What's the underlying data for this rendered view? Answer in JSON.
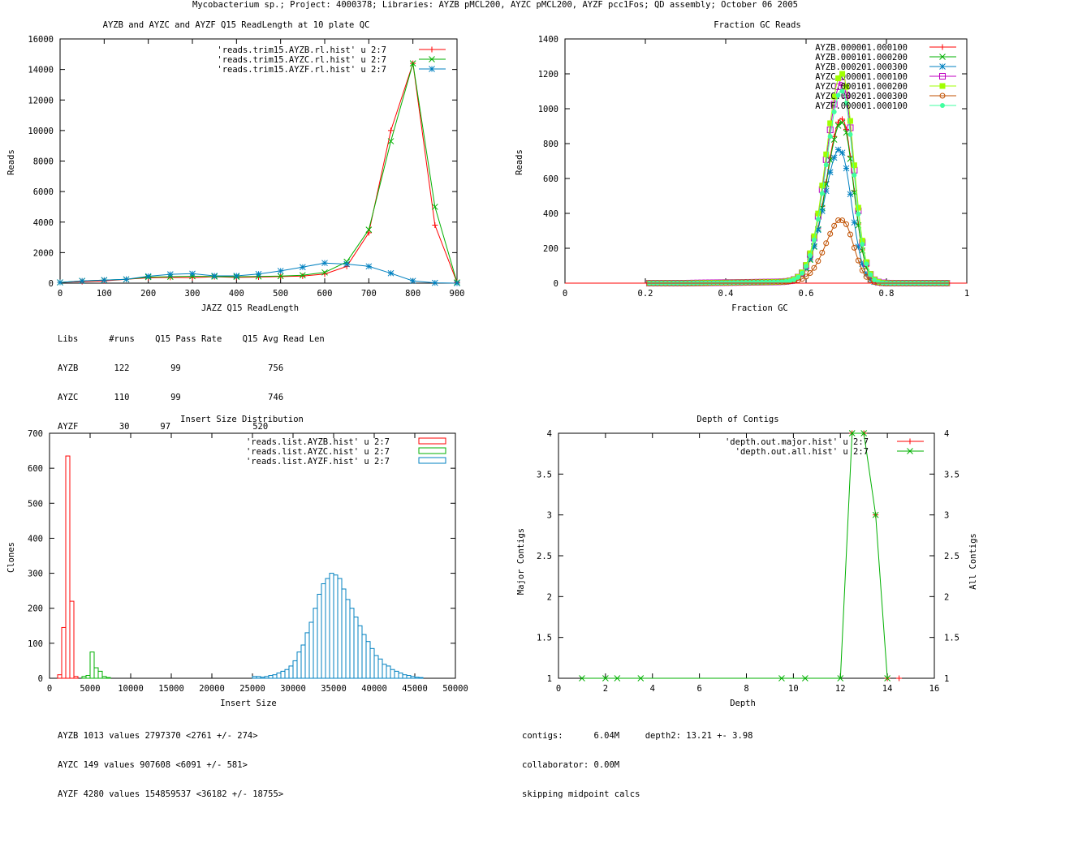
{
  "page_title": "Mycobacterium sp.; Project: 4000378; Libraries: AYZB pMCL200, AYZC pMCL200, AYZF pcc1Fos; QD assembly; October 06 2005",
  "chart_data": [
    {
      "id": "readlength",
      "type": "line",
      "title": "AYZB and AYZC and AYZF Q15 ReadLength at 10 plate QC",
      "xlabel": "JAZZ Q15 ReadLength",
      "ylabel": "Reads",
      "xlim": [
        0,
        900
      ],
      "ylim": [
        0,
        16000
      ],
      "xticks": [
        0,
        100,
        200,
        300,
        400,
        500,
        600,
        700,
        800,
        900
      ],
      "yticks": [
        0,
        2000,
        4000,
        6000,
        8000,
        10000,
        12000,
        14000,
        16000
      ],
      "legend_position": "top-right",
      "x": [
        0,
        50,
        100,
        150,
        200,
        250,
        300,
        350,
        400,
        450,
        500,
        550,
        600,
        650,
        700,
        750,
        800,
        850,
        900
      ],
      "series": [
        {
          "name": "'reads.trim15.AYZB.rl.hist' u 2:7",
          "color": "#ff0000",
          "marker": "plus",
          "values": [
            50,
            100,
            150,
            250,
            350,
            380,
            360,
            420,
            380,
            400,
            430,
            460,
            600,
            1100,
            3300,
            10000,
            14400,
            3800,
            50
          ]
        },
        {
          "name": "'reads.trim15.AYZC.rl.hist' u 2:7",
          "color": "#00b000",
          "marker": "cross",
          "values": [
            50,
            150,
            200,
            250,
            400,
            420,
            450,
            430,
            420,
            440,
            460,
            520,
            700,
            1400,
            3500,
            9300,
            14400,
            5000,
            50
          ]
        },
        {
          "name": "'reads.trim15.AYZF.rl.hist' u 2:7",
          "color": "#0080c0",
          "marker": "star",
          "values": [
            50,
            150,
            200,
            250,
            450,
            580,
            620,
            480,
            480,
            600,
            800,
            1050,
            1320,
            1250,
            1100,
            650,
            150,
            20,
            0
          ]
        }
      ],
      "stats": {
        "header": "Libs      #runs    Q15 Pass Rate    Q15 Avg Read Len",
        "rows": [
          "AYZB       122        99                 756",
          "AYZC       110        99                 746",
          "AYZF        30      97                520"
        ]
      }
    },
    {
      "id": "gc",
      "type": "line",
      "title": "Fraction GC Reads",
      "xlabel": "Fraction GC",
      "ylabel": "Reads",
      "xlim": [
        0,
        1
      ],
      "ylim": [
        0,
        1400
      ],
      "xticks": [
        0,
        0.2,
        0.4,
        0.6,
        0.8,
        1
      ],
      "yticks": [
        0,
        200,
        400,
        600,
        800,
        1000,
        1200,
        1400
      ],
      "legend_position": "top-right",
      "series": [
        {
          "name": "AYZB.000001.000100",
          "color": "#ff0000",
          "marker": "plus",
          "peak": 940,
          "center": 0.69
        },
        {
          "name": "AYZB.000101.000200",
          "color": "#00b000",
          "marker": "cross",
          "peak": 920,
          "center": 0.69
        },
        {
          "name": "AYZB.000201.000300",
          "color": "#0080c0",
          "marker": "star",
          "peak": 760,
          "center": 0.685
        },
        {
          "name": "AYZC.000001.000100",
          "color": "#c000c0",
          "marker": "box",
          "peak": 1150,
          "center": 0.69
        },
        {
          "name": "AYZC.000101.000200",
          "color": "#a0ff00",
          "marker": "filled-box",
          "peak": 1200,
          "center": 0.69
        },
        {
          "name": "AYZC.000201.000300",
          "color": "#c05000",
          "marker": "circle",
          "peak": 360,
          "center": 0.69
        },
        {
          "name": "AYZF.000001.000100",
          "color": "#40ffa0",
          "marker": "filled-circle",
          "peak": 1100,
          "center": 0.69
        }
      ]
    },
    {
      "id": "insert",
      "type": "bar",
      "title": "Insert Size Distribution",
      "xlabel": "Insert Size",
      "ylabel": "Clones",
      "xlim": [
        0,
        50000
      ],
      "ylim": [
        0,
        700
      ],
      "xticks": [
        0,
        5000,
        10000,
        15000,
        20000,
        25000,
        30000,
        35000,
        40000,
        45000,
        50000
      ],
      "yticks": [
        0,
        100,
        200,
        300,
        400,
        500,
        600,
        700
      ],
      "legend_position": "top-right",
      "series": [
        {
          "name": "'reads.list.AYZB.hist' u 2:7",
          "color": "#ff0000",
          "bin_width": 500,
          "x": [
            1000,
            1500,
            2000,
            2500,
            3000
          ],
          "values": [
            10,
            145,
            635,
            220,
            5
          ]
        },
        {
          "name": "'reads.list.AYZC.hist' u 2:7",
          "color": "#00b000",
          "bin_width": 500,
          "x": [
            4000,
            4500,
            5000,
            5500,
            6000,
            6500,
            7000
          ],
          "values": [
            5,
            8,
            75,
            30,
            20,
            5,
            2
          ]
        },
        {
          "name": "'reads.list.AYZF.hist' u 2:7",
          "color": "#0080c0",
          "bin_width": 500,
          "x": [
            25000,
            25500,
            26000,
            26500,
            27000,
            27500,
            28000,
            28500,
            29000,
            29500,
            30000,
            30500,
            31000,
            31500,
            32000,
            32500,
            33000,
            33500,
            34000,
            34500,
            35000,
            35500,
            36000,
            36500,
            37000,
            37500,
            38000,
            38500,
            39000,
            39500,
            40000,
            40500,
            41000,
            41500,
            42000,
            42500,
            43000,
            43500,
            44000,
            44500,
            45000,
            45500
          ],
          "values": [
            5,
            5,
            3,
            5,
            8,
            10,
            15,
            20,
            25,
            35,
            50,
            75,
            95,
            130,
            160,
            200,
            240,
            270,
            285,
            300,
            295,
            285,
            255,
            225,
            200,
            175,
            150,
            125,
            105,
            85,
            65,
            55,
            40,
            35,
            25,
            20,
            15,
            10,
            8,
            5,
            3,
            2
          ]
        }
      ],
      "stats": [
        "AYZB 1013 values 2797370 <2761 +/- 274>",
        "AYZC 149 values 907608 <6091 +/- 581>",
        "AYZF 4280 values 154859537 <36182 +/- 18755>"
      ]
    },
    {
      "id": "depth",
      "type": "line",
      "title": "Depth of Contigs",
      "xlabel": "Depth",
      "ylabel": "Major Contigs",
      "y2label": "All Contigs",
      "xlim": [
        0,
        16
      ],
      "ylim": [
        1,
        4
      ],
      "y2lim": [
        1,
        4
      ],
      "xticks": [
        0,
        2,
        4,
        6,
        8,
        10,
        12,
        14,
        16
      ],
      "yticks": [
        1,
        1.5,
        2,
        2.5,
        3,
        3.5,
        4
      ],
      "y2ticks": [
        1,
        1.5,
        2,
        2.5,
        3,
        3.5,
        4
      ],
      "legend_position": "top-right",
      "series": [
        {
          "name": "'depth.out.major.hist' u 2:7",
          "color": "#ff0000",
          "marker": "plus",
          "x": [
            12.5,
            13,
            13.5,
            14,
            14.5
          ],
          "values": [
            4,
            4,
            3,
            1,
            1
          ]
        },
        {
          "name": "'depth.out.all.hist' u 2:7",
          "color": "#00b000",
          "marker": "cross",
          "x": [
            1,
            2,
            2.5,
            3.5,
            9.5,
            10.5,
            12,
            12.5,
            13,
            13.5,
            14
          ],
          "values": [
            1,
            1,
            1,
            1,
            1,
            1,
            1,
            4,
            4,
            3,
            1
          ]
        }
      ],
      "stats": [
        "contigs:      6.04M     depth2: 13.21 +- 3.98",
        "collaborator: 0.00M",
        "skipping midpoint calcs"
      ]
    }
  ]
}
